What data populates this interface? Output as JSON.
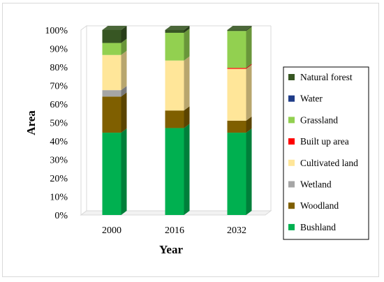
{
  "chart_data": {
    "type": "bar",
    "stacked": true,
    "percent": true,
    "style": "3d-column",
    "xlabel": "Year",
    "ylabel": "Area",
    "categories": [
      "2000",
      "2016",
      "2032"
    ],
    "y_ticks": [
      "0%",
      "10%",
      "20%",
      "30%",
      "40%",
      "50%",
      "60%",
      "70%",
      "80%",
      "90%",
      "100%"
    ],
    "ylim": [
      0,
      100
    ],
    "grid": false,
    "legend_position": "right",
    "series": [
      {
        "name": "Bushland",
        "color": "#00b050",
        "values": [
          44.5,
          47,
          44.5
        ]
      },
      {
        "name": "Woodland",
        "color": "#7f5f00",
        "values": [
          19.5,
          9.5,
          6.5
        ]
      },
      {
        "name": "Wetland",
        "color": "#a6a6a6",
        "values": [
          3.5,
          0,
          0
        ]
      },
      {
        "name": "Cultivated land",
        "color": "#ffe699",
        "values": [
          19,
          27,
          28
        ]
      },
      {
        "name": "Built up area",
        "color": "#ff0000",
        "values": [
          0,
          0,
          0.5
        ]
      },
      {
        "name": "Grassland",
        "color": "#92d050",
        "values": [
          6.5,
          15,
          20
        ]
      },
      {
        "name": "Water",
        "color": "#1f3c88",
        "values": [
          0,
          0,
          0
        ]
      },
      {
        "name": "Natural forest",
        "color": "#375623",
        "values": [
          7,
          1.5,
          0.5
        ]
      }
    ],
    "legend_order": [
      "Natural forest",
      "Water",
      "Grassland",
      "Built up area",
      "Cultivated land",
      "Wetland",
      "Woodland",
      "Bushland"
    ]
  }
}
